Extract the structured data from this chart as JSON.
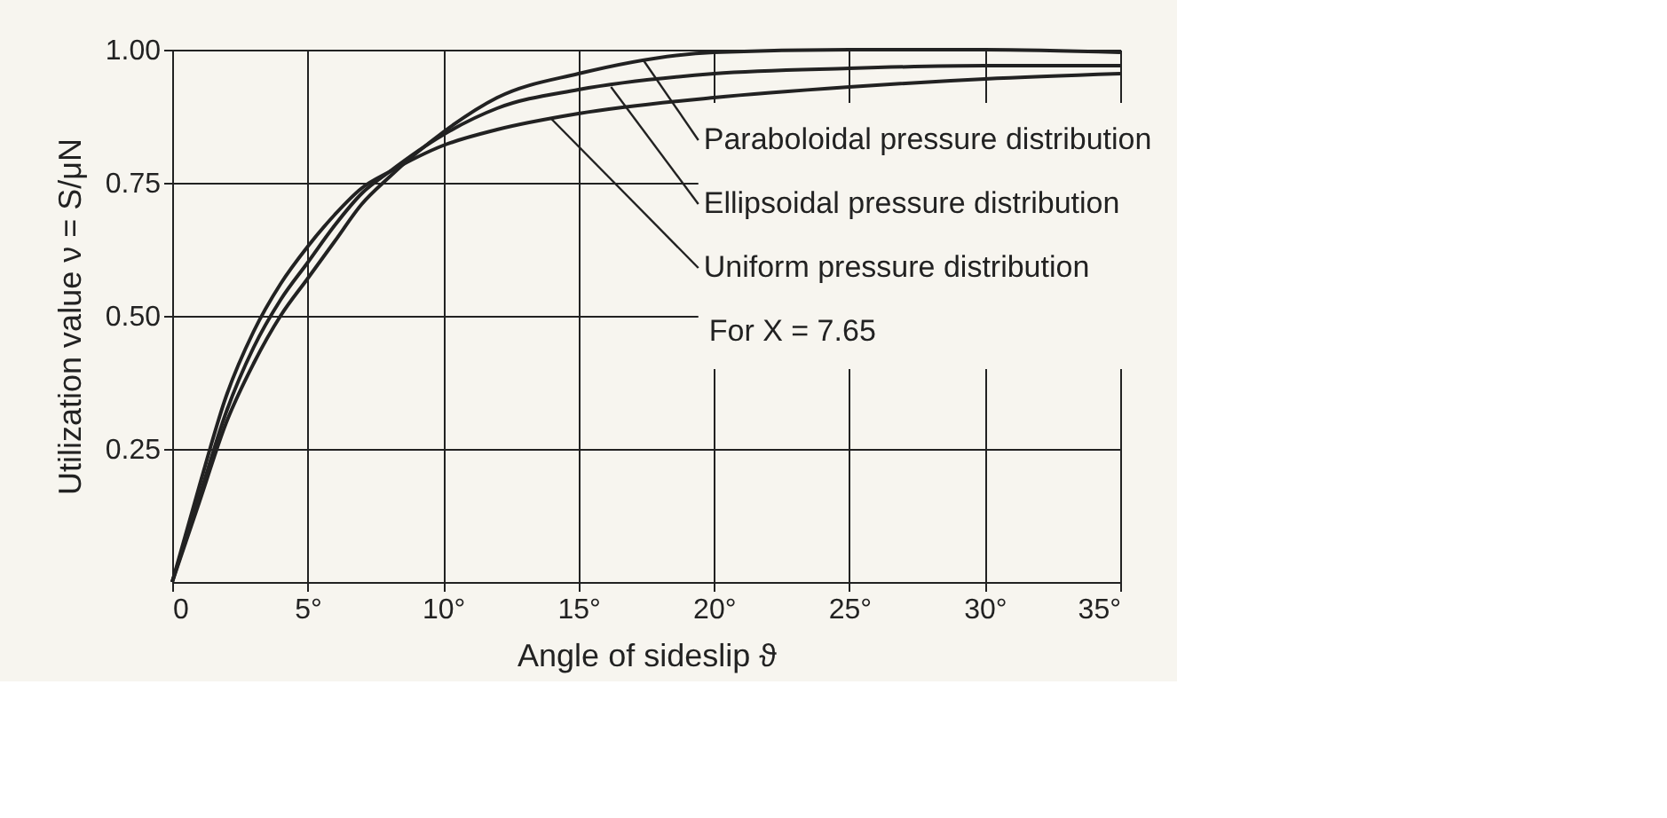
{
  "chart_data": {
    "type": "line",
    "xlabel": "Angle of sideslip ϑ",
    "ylabel": "Utilization value ν = S/μN",
    "xlim": [
      0,
      35
    ],
    "ylim": [
      0,
      1
    ],
    "xticks": [
      0,
      {
        "value": 5,
        "label": "5°"
      },
      {
        "value": 10,
        "label": "10°"
      },
      {
        "value": 15,
        "label": "15°"
      },
      {
        "value": 20,
        "label": "20°"
      },
      {
        "value": 25,
        "label": "25°"
      },
      {
        "value": 30,
        "label": "30°"
      },
      {
        "value": 35,
        "label": "35°"
      }
    ],
    "yticks": [
      {
        "value": 0.25,
        "label": "0.25"
      },
      {
        "value": 0.5,
        "label": "0.50"
      },
      {
        "value": 0.75,
        "label": "0.75"
      },
      {
        "value": 1,
        "label": "1.00"
      }
    ],
    "x": [
      0,
      1,
      2,
      3,
      4,
      5,
      6,
      7,
      8,
      10,
      12,
      15,
      20,
      25,
      30,
      35
    ],
    "series": [
      {
        "color": "#222222",
        "values": [
          0,
          0.18,
          0.35,
          0.47,
          0.56,
          0.63,
          0.69,
          0.74,
          0.77,
          0.82,
          0.85,
          0.88,
          0.91,
          0.93,
          0.945,
          0.955
        ]
      },
      {
        "color": "#222222",
        "values": [
          0,
          0.16,
          0.32,
          0.44,
          0.53,
          0.6,
          0.67,
          0.73,
          0.77,
          0.84,
          0.89,
          0.925,
          0.955,
          0.965,
          0.97,
          0.97
        ]
      },
      {
        "color": "#222222",
        "values": [
          0,
          0.15,
          0.3,
          0.41,
          0.5,
          0.57,
          0.64,
          0.71,
          0.76,
          0.845,
          0.91,
          0.955,
          0.995,
          1.0,
          1.0,
          0.995
        ]
      }
    ],
    "annotations": [
      {
        "text": "Paraboloidal pressure distribution",
        "x": 17.4,
        "y": 0.98
      },
      {
        "text": "Ellipsoidal pressure distribution",
        "x": 16.2,
        "y": 0.93
      },
      {
        "text": "Uniform pressure distribution",
        "x": 14,
        "y": 0.87
      },
      "For Χ = 7.65"
    ],
    "grid": true,
    "marker": "none",
    "line_style": "solid"
  }
}
